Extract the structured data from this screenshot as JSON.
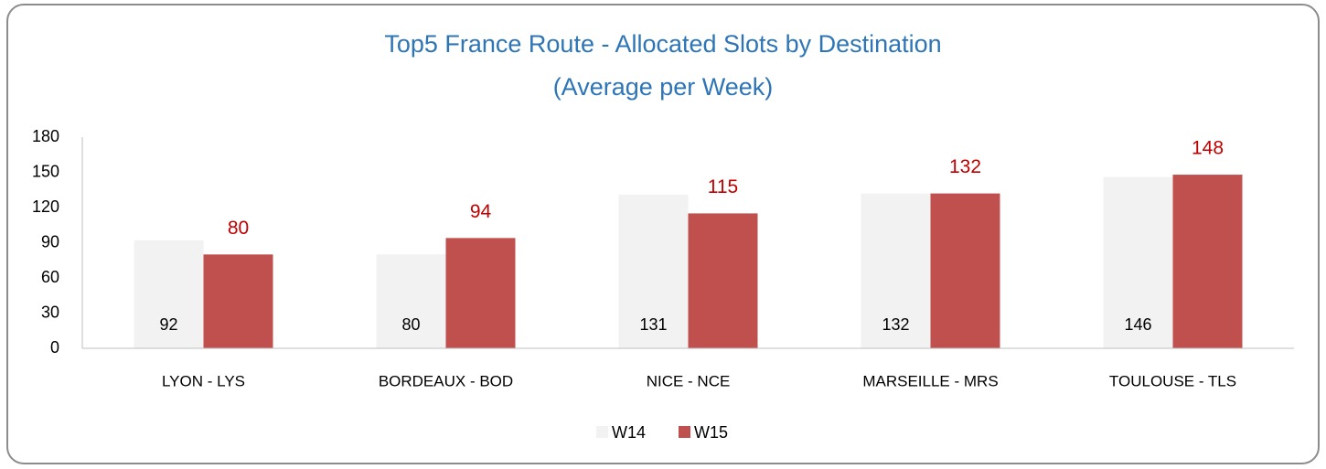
{
  "chart_data": {
    "type": "bar",
    "title": "Top5 France Route - Allocated Slots by Destination",
    "subtitle": "(Average per Week)",
    "categories": [
      "LYON - LYS",
      "BORDEAUX - BOD",
      "NICE - NCE",
      "MARSEILLE - MRS",
      "TOULOUSE - TLS"
    ],
    "series": [
      {
        "name": "W14",
        "color": "#f2f2f2",
        "values": [
          92,
          80,
          131,
          132,
          146
        ]
      },
      {
        "name": "W15",
        "color": "#c0504d",
        "values": [
          80,
          94,
          115,
          132,
          148
        ]
      }
    ],
    "ylim": [
      0,
      180
    ],
    "yticks": [
      0,
      30,
      60,
      90,
      120,
      150,
      180
    ],
    "grid": false,
    "legend": "bottom"
  }
}
